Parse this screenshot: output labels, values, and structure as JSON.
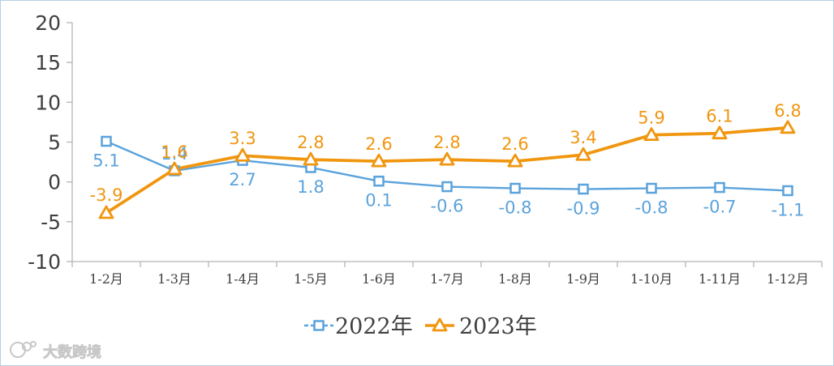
{
  "chart_data": {
    "type": "line",
    "categories": [
      "1-2月",
      "1-3月",
      "1-4月",
      "1-5月",
      "1-6月",
      "1-7月",
      "1-8月",
      "1-9月",
      "1-10月",
      "1-11月",
      "1-12月"
    ],
    "series": [
      {
        "name": "2022年",
        "color": "#5ba3dc",
        "marker": "square",
        "values": [
          5.1,
          1.4,
          2.7,
          1.8,
          0.1,
          -0.6,
          -0.8,
          -0.9,
          -0.8,
          -0.7,
          -1.1
        ],
        "labels": [
          "5.1",
          "1.4",
          "2.7",
          "1.8",
          "0.1",
          "-0.6",
          "-0.8",
          "-0.9",
          "-0.8",
          "-0.7",
          "-1.1"
        ]
      },
      {
        "name": "2023年",
        "color": "#f0960f",
        "marker": "triangle",
        "values": [
          -3.9,
          1.6,
          3.3,
          2.8,
          2.6,
          2.8,
          2.6,
          3.4,
          5.9,
          6.1,
          6.8
        ],
        "labels": [
          "-3.9",
          "1.6",
          "3.3",
          "2.8",
          "2.6",
          "2.8",
          "2.6",
          "3.4",
          "5.9",
          "6.1",
          "6.8"
        ]
      }
    ],
    "ylim": [
      -10,
      20
    ],
    "yticks": [
      20,
      15,
      10,
      5,
      0,
      -5,
      -10
    ],
    "legend_position": "bottom",
    "grid": false
  },
  "watermark": {
    "text": "大数跨境"
  }
}
